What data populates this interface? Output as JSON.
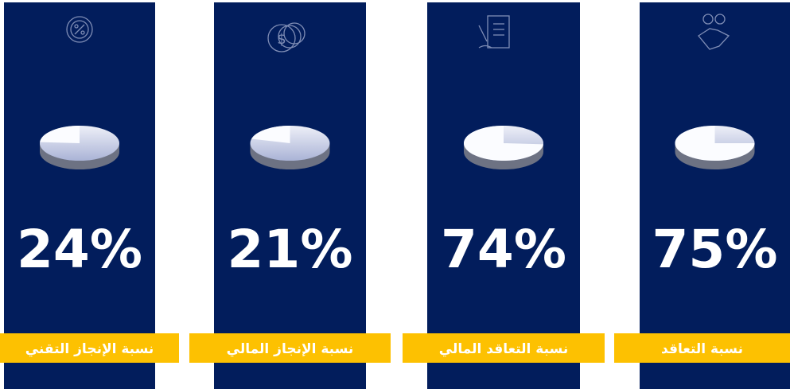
{
  "cards": [
    {
      "label": "نسبة الإنجاز التقني",
      "value": 24,
      "value_label": "24%"
    },
    {
      "label": "نسبة الإنجاز المالي",
      "value": 21,
      "value_label": "21%"
    },
    {
      "label": "نسبة التعاقد المالي",
      "value": 74,
      "value_label": "74%"
    },
    {
      "label": "نسبة التعاقد",
      "value": 75,
      "value_label": "75%"
    }
  ]
}
